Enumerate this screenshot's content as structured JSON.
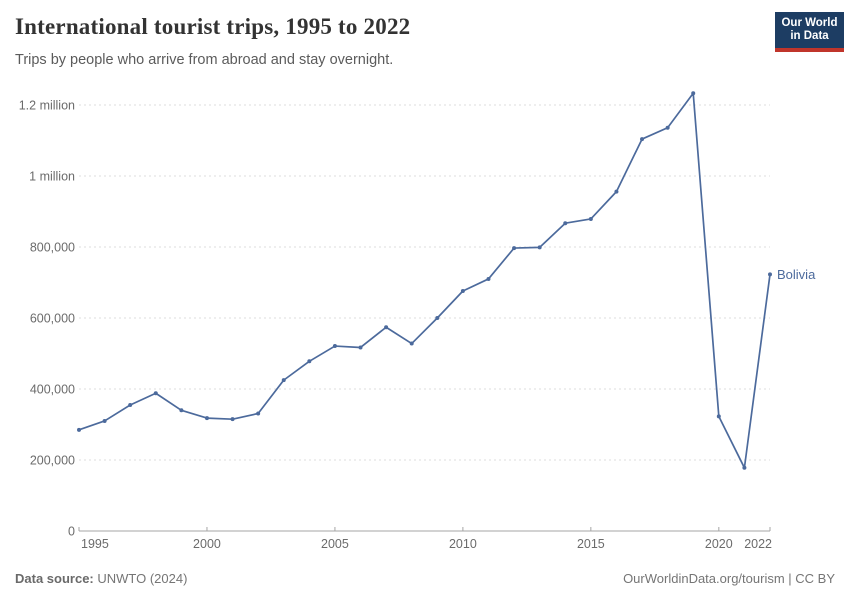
{
  "header": {
    "title": "International tourist trips, 1995 to 2022",
    "subtitle": "Trips by people who arrive from abroad and stay overnight.",
    "logo": {
      "line1": "Our World",
      "line2": "in Data"
    }
  },
  "chart_data": {
    "type": "line",
    "title": "International tourist trips, 1995 to 2022",
    "xlabel": "",
    "ylabel": "",
    "x": [
      1995,
      1996,
      1997,
      1998,
      1999,
      2000,
      2001,
      2002,
      2003,
      2004,
      2005,
      2006,
      2007,
      2008,
      2009,
      2010,
      2011,
      2012,
      2013,
      2014,
      2015,
      2016,
      2017,
      2018,
      2019,
      2020,
      2021,
      2022
    ],
    "series": [
      {
        "name": "Bolivia",
        "color": "#4c6a9c",
        "values": [
          285000,
          310000,
          355000,
          388000,
          340000,
          318000,
          315000,
          331000,
          425000,
          478000,
          521000,
          517000,
          574000,
          528000,
          600000,
          676000,
          710000,
          797000,
          799000,
          867000,
          879000,
          956000,
          1104000,
          1136000,
          1233000,
          323000,
          178000,
          723000
        ]
      }
    ],
    "xlim": [
      1995,
      2022
    ],
    "ylim": [
      0,
      1200000
    ],
    "xticks": [
      1995,
      2000,
      2005,
      2010,
      2015,
      2020,
      2022
    ],
    "ytick_values": [
      0,
      200000,
      400000,
      600000,
      800000,
      1000000,
      1200000
    ],
    "ytick_labels": [
      "0",
      "200,000",
      "400,000",
      "600,000",
      "800,000",
      "1 million",
      "1.2 million"
    ],
    "grid": "horizontal-dashed",
    "legend_position": "end-of-line-label",
    "end_label": "Bolivia"
  },
  "footer": {
    "source_label": "Data source:",
    "source_value": " UNWTO (2024)",
    "right_text": "OurWorldinData.org/tourism | CC BY"
  },
  "colors": {
    "line": "#4c6a9c",
    "grid": "#dcdcdc",
    "axis": "#a5a5a5",
    "tick_text": "#6b6b6b",
    "logo_bg": "#1d3d63",
    "logo_stripe": "#c0352b"
  }
}
